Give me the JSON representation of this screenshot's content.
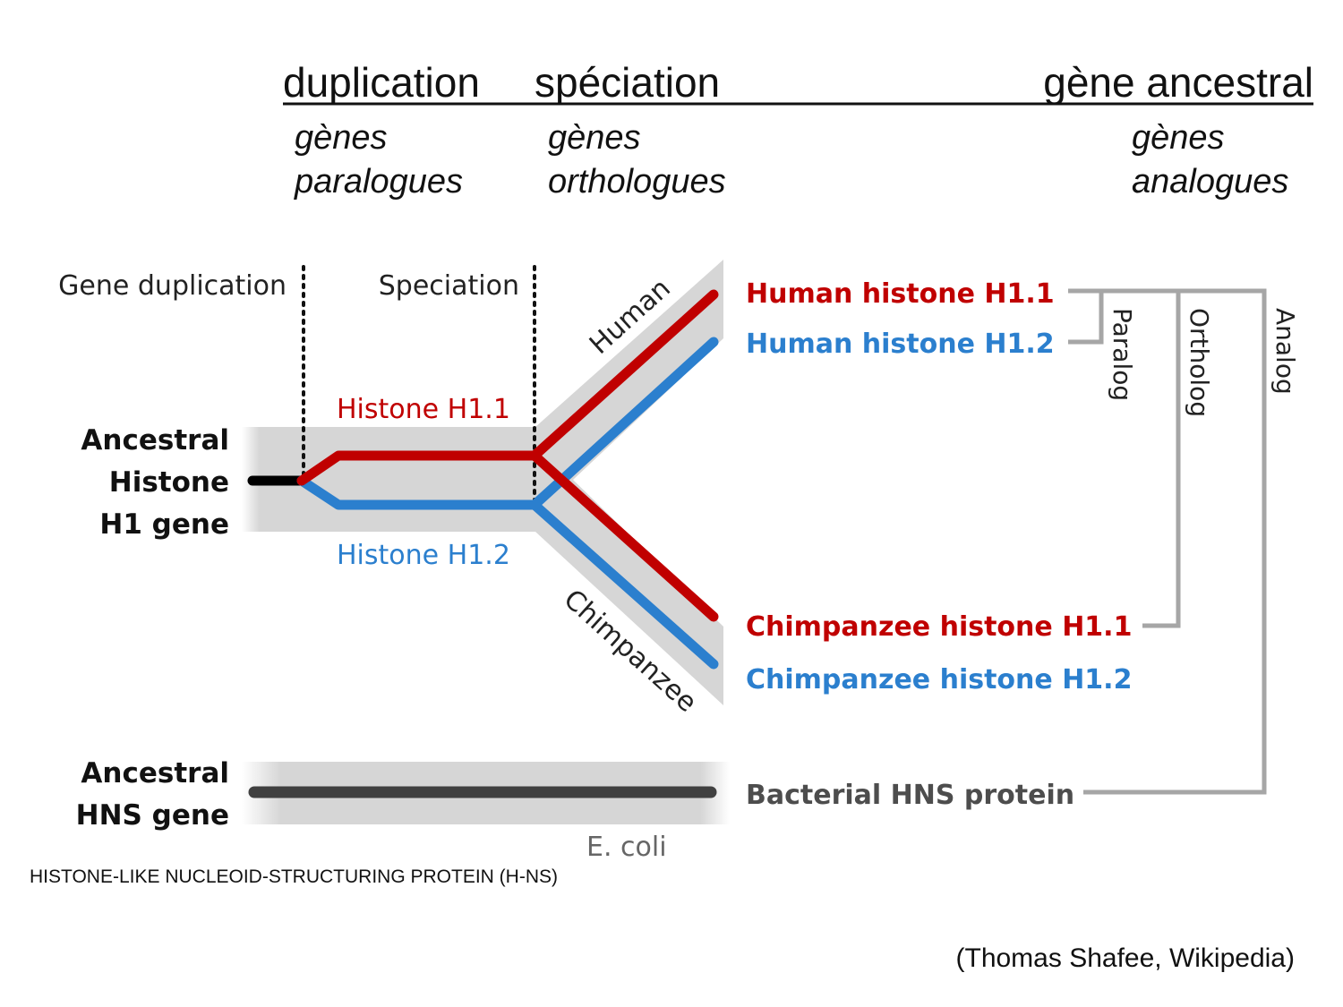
{
  "header": {
    "duplication": "duplication",
    "speciation": "spéciation",
    "ancestral_gene": "gène ancestral",
    "paralogs_line1": "gènes",
    "paralogs_line2": "paralogues",
    "orthologs_line1": "gènes",
    "orthologs_line2": "orthologues",
    "analogs_line1": "gènes",
    "analogs_line2": "analogues"
  },
  "events": {
    "gene_duplication": "Gene duplication",
    "speciation": "Speciation"
  },
  "ancestral_histone": {
    "line1": "Ancestral",
    "line2": "Histone",
    "line3": "H1 gene"
  },
  "ancestral_hns": {
    "line1": "Ancestral",
    "line2": "HNS gene"
  },
  "branches": {
    "h11": "Histone H1.1",
    "h12": "Histone H1.2",
    "human": "Human",
    "chimpanzee": "Chimpanzee",
    "ecoli": "E. coli"
  },
  "leaves": {
    "human_h11": "Human histone H1.1",
    "human_h12": "Human histone H1.2",
    "chimp_h11": "Chimpanzee histone H1.1",
    "chimp_h12": "Chimpanzee histone H1.2",
    "bacterial": "Bacterial HNS protein"
  },
  "relations": {
    "paralog": "Paralog",
    "ortholog": "Ortholog",
    "analog": "Analog"
  },
  "colors": {
    "h11": "#c00000",
    "h12": "#2b7fce",
    "bracket": "#a6a6a6",
    "band": "#d6d6d6",
    "hns_line": "#404040"
  },
  "caption": "HISTONE-LIKE NUCLEOID-STRUCTURING PROTEIN (H-NS)",
  "credit": "(Thomas Shafee, Wikipedia)"
}
